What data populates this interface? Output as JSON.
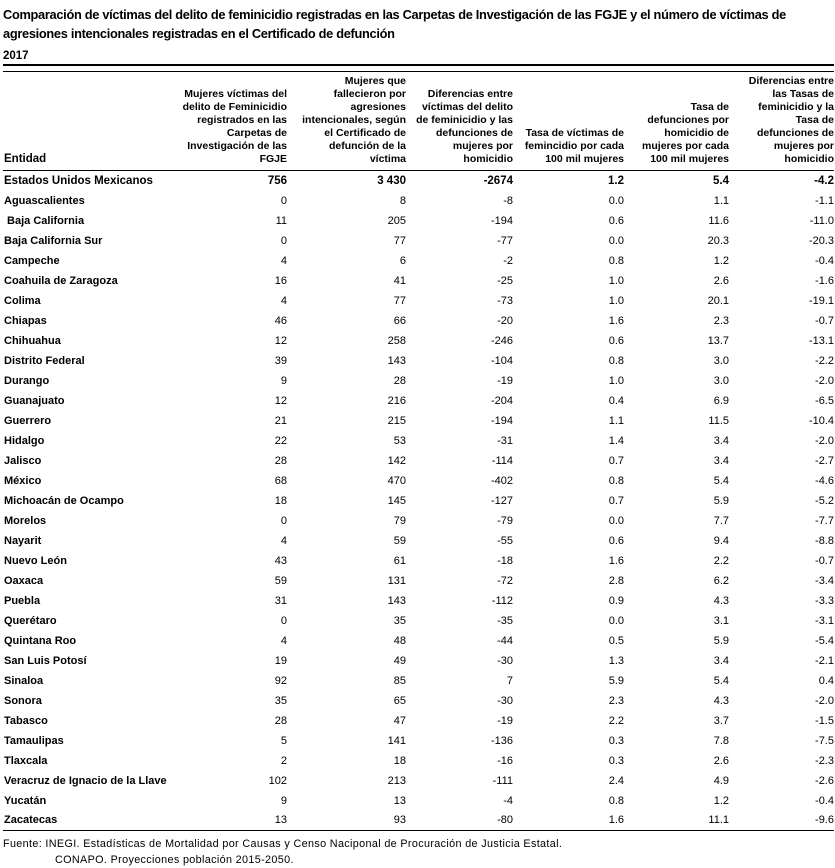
{
  "title": "Comparación de víctimas del delito de feminicidio registradas en las Carpetas de Investigación de las FGJE y el número de víctimas de agresiones intencionales registradas en el Certificado de defunción",
  "year": "2017",
  "colors": {
    "text": "#000000",
    "background": "#ffffff",
    "border": "#000000"
  },
  "table": {
    "columns": [
      {
        "label": "Entidad"
      },
      {
        "label": "Mujeres víctimas del delito de Feminicidio registrados en las Carpetas de Investigación de las FGJE"
      },
      {
        "label": "Mujeres que fallecieron por agresiones intencionales, según el Certificado de defunción de la víctima"
      },
      {
        "label": "Diferencias entre víctimas del delito de feminicidio y las defunciones de mujeres por homicidio"
      },
      {
        "label": "Tasa de víctimas de femincidio por cada 100 mil mujeres"
      },
      {
        "label": "Tasa de defunciones por homicidio de mujeres por cada 100 mil mujeres"
      },
      {
        "label": "Diferencias entre las Tasas de feminicidio y la Tasa de defunciones de mujeres por homicidio"
      }
    ],
    "rows": [
      {
        "entidad": "Estados Unidos Mexicanos",
        "bold": true,
        "values": [
          "756",
          "3 430",
          "-2674",
          "1.2",
          "5.4",
          "-4.2"
        ]
      },
      {
        "entidad": "Aguascalientes",
        "bold": false,
        "values": [
          "0",
          "8",
          "-8",
          "0.0",
          "1.1",
          "-1.1"
        ]
      },
      {
        "entidad": " Baja California",
        "bold": false,
        "values": [
          "11",
          "205",
          "-194",
          "0.6",
          "11.6",
          "-11.0"
        ]
      },
      {
        "entidad": "Baja California Sur",
        "bold": false,
        "values": [
          "0",
          "77",
          "-77",
          "0.0",
          "20.3",
          "-20.3"
        ]
      },
      {
        "entidad": "Campeche",
        "bold": false,
        "values": [
          "4",
          "6",
          "-2",
          "0.8",
          "1.2",
          "-0.4"
        ]
      },
      {
        "entidad": "Coahuila de Zaragoza",
        "bold": false,
        "values": [
          "16",
          "41",
          "-25",
          "1.0",
          "2.6",
          "-1.6"
        ]
      },
      {
        "entidad": "Colima",
        "bold": false,
        "values": [
          "4",
          "77",
          "-73",
          "1.0",
          "20.1",
          "-19.1"
        ]
      },
      {
        "entidad": "Chiapas",
        "bold": false,
        "values": [
          "46",
          "66",
          "-20",
          "1.6",
          "2.3",
          "-0.7"
        ]
      },
      {
        "entidad": "Chihuahua",
        "bold": false,
        "values": [
          "12",
          "258",
          "-246",
          "0.6",
          "13.7",
          "-13.1"
        ]
      },
      {
        "entidad": "Distrito Federal",
        "bold": false,
        "values": [
          "39",
          "143",
          "-104",
          "0.8",
          "3.0",
          "-2.2"
        ]
      },
      {
        "entidad": "Durango",
        "bold": false,
        "values": [
          "9",
          "28",
          "-19",
          "1.0",
          "3.0",
          "-2.0"
        ]
      },
      {
        "entidad": "Guanajuato",
        "bold": false,
        "values": [
          "12",
          "216",
          "-204",
          "0.4",
          "6.9",
          "-6.5"
        ]
      },
      {
        "entidad": "Guerrero",
        "bold": false,
        "values": [
          "21",
          "215",
          "-194",
          "1.1",
          "11.5",
          "-10.4"
        ]
      },
      {
        "entidad": "Hidalgo",
        "bold": false,
        "values": [
          "22",
          "53",
          "-31",
          "1.4",
          "3.4",
          "-2.0"
        ]
      },
      {
        "entidad": "Jalisco",
        "bold": false,
        "values": [
          "28",
          "142",
          "-114",
          "0.7",
          "3.4",
          "-2.7"
        ]
      },
      {
        "entidad": "México",
        "bold": false,
        "values": [
          "68",
          "470",
          "-402",
          "0.8",
          "5.4",
          "-4.6"
        ]
      },
      {
        "entidad": "Michoacán de Ocampo",
        "bold": false,
        "values": [
          "18",
          "145",
          "-127",
          "0.7",
          "5.9",
          "-5.2"
        ]
      },
      {
        "entidad": "Morelos",
        "bold": false,
        "values": [
          "0",
          "79",
          "-79",
          "0.0",
          "7.7",
          "-7.7"
        ]
      },
      {
        "entidad": "Nayarit",
        "bold": false,
        "values": [
          "4",
          "59",
          "-55",
          "0.6",
          "9.4",
          "-8.8"
        ]
      },
      {
        "entidad": "Nuevo León",
        "bold": false,
        "values": [
          "43",
          "61",
          "-18",
          "1.6",
          "2.2",
          "-0.7"
        ]
      },
      {
        "entidad": "Oaxaca",
        "bold": false,
        "values": [
          "59",
          "131",
          "-72",
          "2.8",
          "6.2",
          "-3.4"
        ]
      },
      {
        "entidad": "Puebla",
        "bold": false,
        "values": [
          "31",
          "143",
          "-112",
          "0.9",
          "4.3",
          "-3.3"
        ]
      },
      {
        "entidad": "Querétaro",
        "bold": false,
        "values": [
          "0",
          "35",
          "-35",
          "0.0",
          "3.1",
          "-3.1"
        ]
      },
      {
        "entidad": "Quintana Roo",
        "bold": false,
        "values": [
          "4",
          "48",
          "-44",
          "0.5",
          "5.9",
          "-5.4"
        ]
      },
      {
        "entidad": "San Luis Potosí",
        "bold": false,
        "values": [
          "19",
          "49",
          "-30",
          "1.3",
          "3.4",
          "-2.1"
        ]
      },
      {
        "entidad": "Sinaloa",
        "bold": false,
        "values": [
          "92",
          "85",
          "7",
          "5.9",
          "5.4",
          "0.4"
        ]
      },
      {
        "entidad": "Sonora",
        "bold": false,
        "values": [
          "35",
          "65",
          "-30",
          "2.3",
          "4.3",
          "-2.0"
        ]
      },
      {
        "entidad": "Tabasco",
        "bold": false,
        "values": [
          "28",
          "47",
          "-19",
          "2.2",
          "3.7",
          "-1.5"
        ]
      },
      {
        "entidad": "Tamaulipas",
        "bold": false,
        "values": [
          "5",
          "141",
          "-136",
          "0.3",
          "7.8",
          "-7.5"
        ]
      },
      {
        "entidad": "Tlaxcala",
        "bold": false,
        "values": [
          "2",
          "18",
          "-16",
          "0.3",
          "2.6",
          "-2.3"
        ]
      },
      {
        "entidad": "Veracruz de Ignacio de la Llave",
        "bold": false,
        "values": [
          "102",
          "213",
          "-111",
          "2.4",
          "4.9",
          "-2.6"
        ]
      },
      {
        "entidad": "Yucatán",
        "bold": false,
        "values": [
          "9",
          "13",
          "-4",
          "0.8",
          "1.2",
          "-0.4"
        ]
      },
      {
        "entidad": "Zacatecas",
        "bold": false,
        "values": [
          "13",
          "93",
          "-80",
          "1.6",
          "11.1",
          "-9.6"
        ]
      }
    ]
  },
  "footer": {
    "line1": "Fuente: INEGI. Estadísticas de Mortalidad por Causas y Censo Naciponal de Procuración de Justicia Estatal.",
    "line2": "CONAPO. Proyecciones población 2015-2050."
  }
}
